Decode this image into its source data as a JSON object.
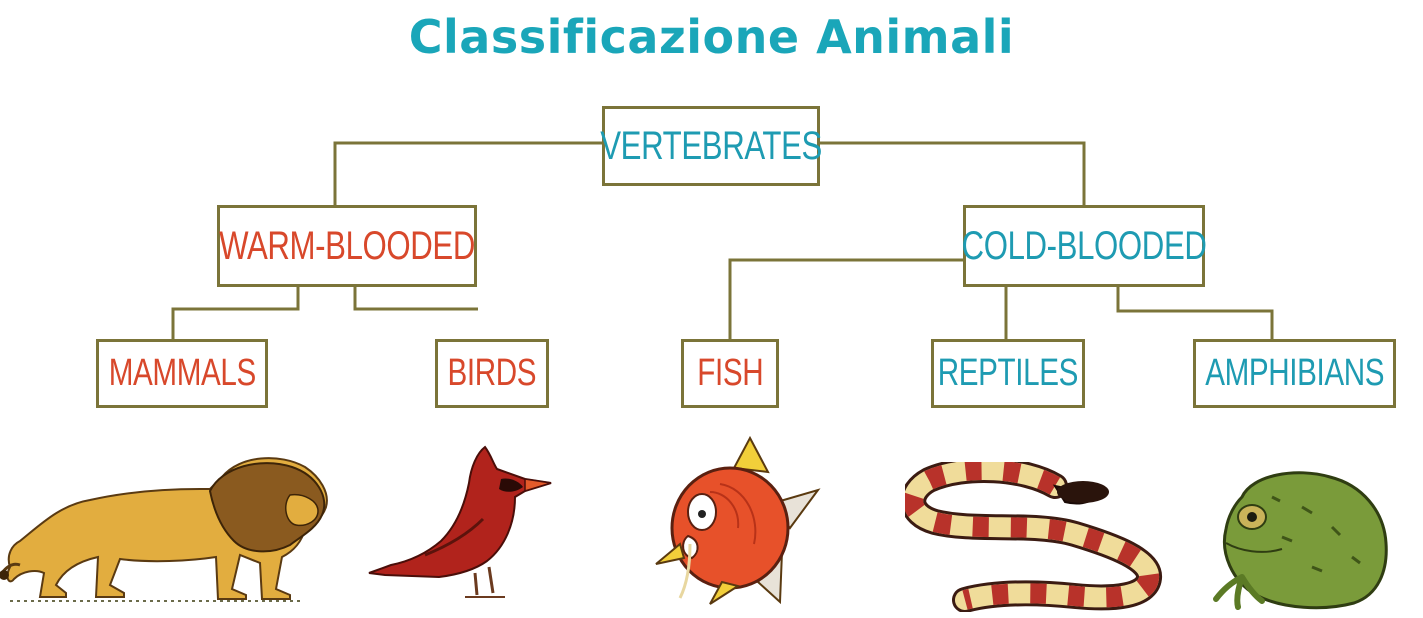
{
  "title": "Classificazione Animali",
  "colors": {
    "title": "#1aa6b9",
    "warm": "#d8482b",
    "cold": "#1e9bb2",
    "border": "#7b7439"
  },
  "nodes": {
    "vertebrates": "VERTEBRATES",
    "warm_blooded": "WARM-BLOODED",
    "cold_blooded": "COLD-BLOODED",
    "mammals": "MAMMALS",
    "birds": "BIRDS",
    "fish": "FISH",
    "reptiles": "REPTILES",
    "amphibians": "AMPHIBIANS"
  },
  "animals": [
    "lion-illustration",
    "cardinal-bird-illustration",
    "magikarp-fish-illustration",
    "coral-snake-illustration",
    "toad-illustration"
  ]
}
